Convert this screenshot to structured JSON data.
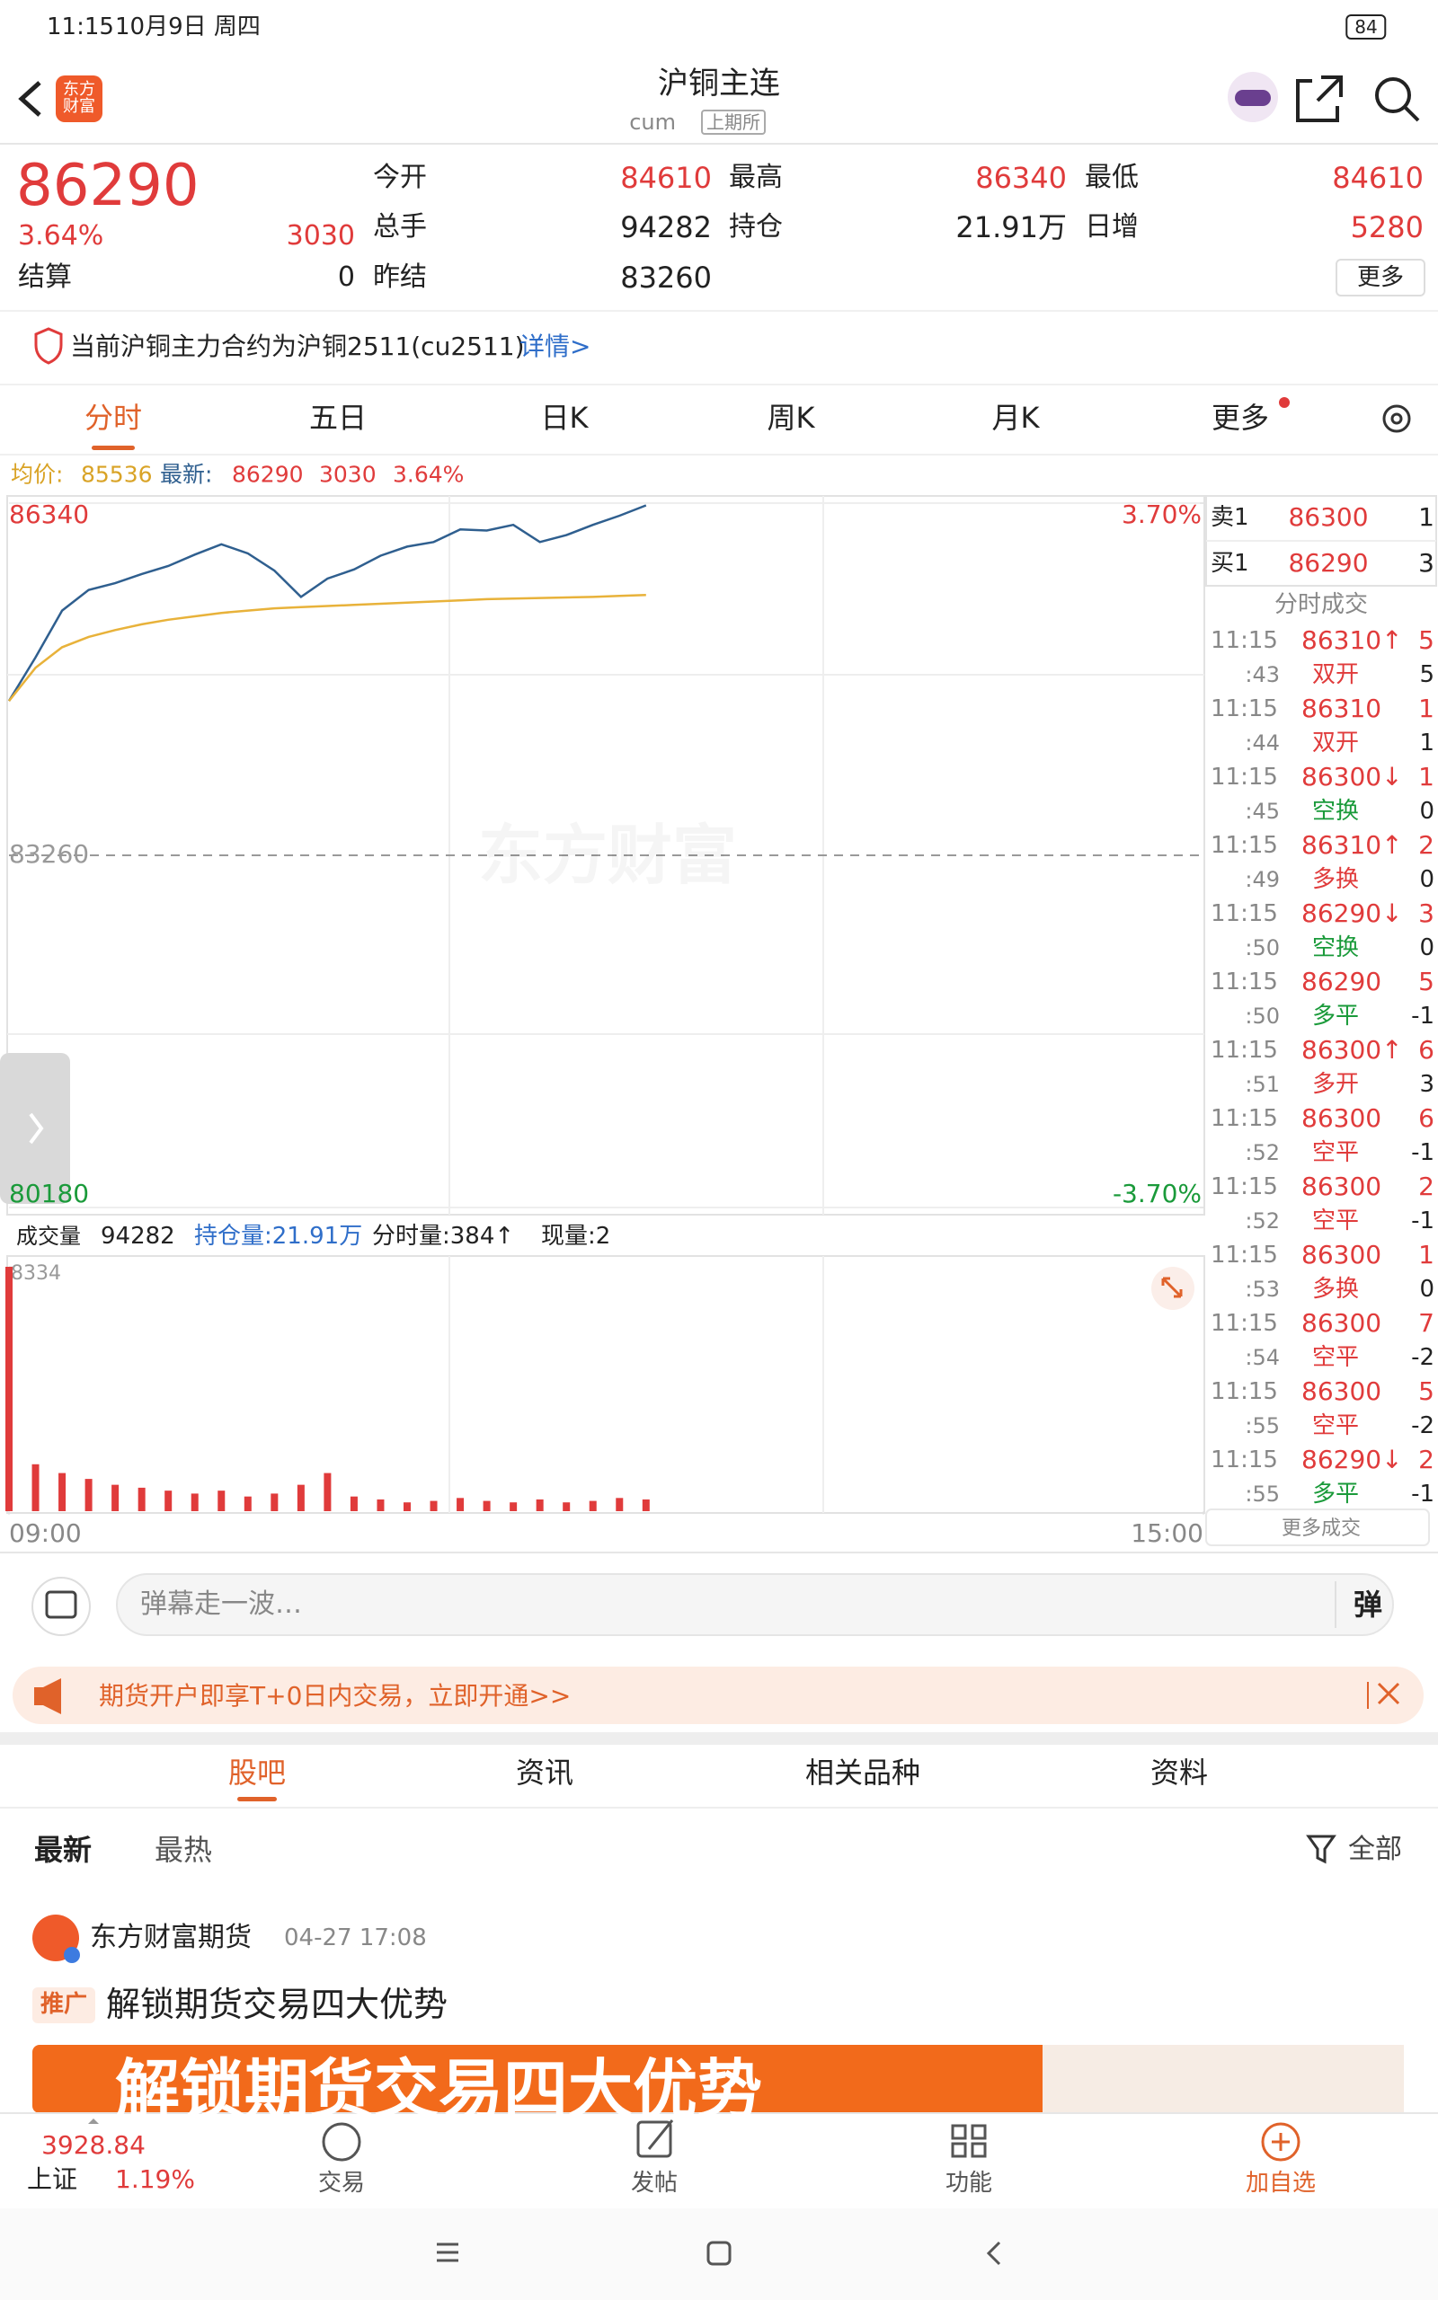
{
  "status_bar": {
    "time": "11:15",
    "date": "10月9日 周四",
    "battery": "84"
  },
  "header": {
    "title": "沪铜主连",
    "code": "cum",
    "exchange": "上期所",
    "logo": "东方财富"
  },
  "quote": {
    "price": "86290",
    "change_pct": "3.64%",
    "change": "3030",
    "settle_label": "结算",
    "settle": "0",
    "fields": [
      {
        "label": "今开",
        "value": "84610",
        "color": "#e03b3b"
      },
      {
        "label": "最高",
        "value": "86340",
        "color": "#e03b3b"
      },
      {
        "label": "最低",
        "value": "84610",
        "color": "#e03b3b"
      },
      {
        "label": "总手",
        "value": "94282",
        "color": "#222222"
      },
      {
        "label": "持仓",
        "value": "21.91万",
        "color": "#222222"
      },
      {
        "label": "日增",
        "value": "5280",
        "color": "#e03b3b"
      },
      {
        "label": "昨结",
        "value": "83260",
        "color": "#222222"
      }
    ],
    "more": "更多"
  },
  "notice": {
    "text": "当前沪铜主力合约为沪铜2511(cu2511)",
    "link": "详情>"
  },
  "tabs": {
    "items": [
      "分时",
      "五日",
      "日K",
      "周K",
      "月K",
      "更多"
    ],
    "active": 0
  },
  "summary": {
    "avg_label": "均价:",
    "avg": "85536",
    "latest_label": "最新:",
    "latest": "86290",
    "change": "3030",
    "pct": "3.64%"
  },
  "watermark": "东方财富",
  "volume_info": {
    "label": "成交量",
    "volume": "94282",
    "oi": "持仓量:21.91万",
    "tick_volume": "分时量:384↑",
    "current": "现量:2"
  },
  "order_book": {
    "ask": {
      "label": "卖1",
      "price": "86300",
      "volume": "1"
    },
    "bid": {
      "label": "买1",
      "price": "86290",
      "volume": "3"
    },
    "title": "分时成交",
    "trades": [
      {
        "time": "11:15",
        "sec": ":43",
        "price": "86310↑",
        "volume": "5",
        "kind": "双开",
        "oi": "5",
        "kind_color": "#e03b3b"
      },
      {
        "time": "11:15",
        "sec": ":44",
        "price": "86310",
        "volume": "1",
        "kind": "双开",
        "oi": "1",
        "kind_color": "#e03b3b"
      },
      {
        "time": "11:15",
        "sec": ":45",
        "price": "86300↓",
        "volume": "1",
        "kind": "空换",
        "oi": "0",
        "kind_color": "#1a9a3a"
      },
      {
        "time": "11:15",
        "sec": ":49",
        "price": "86310↑",
        "volume": "2",
        "kind": "多换",
        "oi": "0",
        "kind_color": "#e03b3b"
      },
      {
        "time": "11:15",
        "sec": ":50",
        "price": "86290↓",
        "volume": "3",
        "kind": "空换",
        "oi": "0",
        "kind_color": "#1a9a3a"
      },
      {
        "time": "11:15",
        "sec": ":50",
        "price": "86290",
        "volume": "5",
        "kind": "多平",
        "oi": "-1",
        "kind_color": "#1a9a3a"
      },
      {
        "time": "11:15",
        "sec": ":51",
        "price": "86300↑",
        "volume": "6",
        "kind": "多开",
        "oi": "3",
        "kind_color": "#e03b3b"
      },
      {
        "time": "11:15",
        "sec": ":52",
        "price": "86300",
        "volume": "6",
        "kind": "空平",
        "oi": "-1",
        "kind_color": "#e03b3b"
      },
      {
        "time": "11:15",
        "sec": ":52",
        "price": "86300",
        "volume": "2",
        "kind": "空平",
        "oi": "-1",
        "kind_color": "#e03b3b"
      },
      {
        "time": "11:15",
        "sec": ":53",
        "price": "86300",
        "volume": "1",
        "kind": "多换",
        "oi": "0",
        "kind_color": "#e03b3b"
      },
      {
        "time": "11:15",
        "sec": ":54",
        "price": "86300",
        "volume": "7",
        "kind": "空平",
        "oi": "-2",
        "kind_color": "#e03b3b"
      },
      {
        "time": "11:15",
        "sec": ":55",
        "price": "86300",
        "volume": "5",
        "kind": "空平",
        "oi": "-2",
        "kind_color": "#e03b3b"
      },
      {
        "time": "11:15",
        "sec": ":55",
        "price": "86290↓",
        "volume": "2",
        "kind": "多平",
        "oi": "-1",
        "kind_color": "#1a9a3a"
      }
    ],
    "more": "更多成交"
  },
  "comment": {
    "placeholder": "弹幕走一波…",
    "button": "弹"
  },
  "promo": {
    "text": "期货开户即享T+0日内交易，立即开通>>"
  },
  "section_tabs": {
    "items": [
      "股吧",
      "资讯",
      "相关品种",
      "资料"
    ],
    "active": 0
  },
  "filter": {
    "items": [
      "最新",
      "最热"
    ],
    "all": "全部"
  },
  "post": {
    "author": "东方财富期货",
    "time": "04-27 17:08",
    "tag": "推广",
    "title": "解锁期货交易四大优势",
    "banner": "解锁期货交易四大优势"
  },
  "bottom_nav": {
    "index_value": "3928.84",
    "index_name": "上证",
    "index_change": "1.19%",
    "items": [
      "交易",
      "发帖",
      "功能",
      "加自选"
    ]
  },
  "chart_data": [
    {
      "type": "line",
      "x": [
        0,
        5,
        10,
        15,
        20,
        25,
        30,
        35,
        40,
        45,
        50,
        55,
        60,
        65,
        70,
        75,
        80,
        85,
        90,
        95,
        100,
        105,
        110,
        115,
        120
      ],
      "series": [
        {
          "color": "#2f5f8f",
          "values": [
            84610,
            84990,
            85400,
            85580,
            85640,
            85720,
            85790,
            85890,
            85980,
            85900,
            85750,
            85520,
            85680,
            85760,
            85880,
            85960,
            86000,
            86110,
            86100,
            86150,
            86000,
            86060,
            86150,
            86230,
            86320
          ]
        },
        {
          "color": "#e8b23a",
          "values": [
            84610,
            84900,
            85080,
            85170,
            85230,
            85280,
            85320,
            85350,
            85380,
            85400,
            85420,
            85430,
            85440,
            85450,
            85460,
            85470,
            85480,
            85490,
            85500,
            85505,
            85510,
            85515,
            85520,
            85528,
            85536
          ]
        }
      ],
      "xlim": [
        0,
        225
      ],
      "ylim": [
        80180,
        86340
      ],
      "yticks": [
        86340,
        83260,
        80180
      ],
      "y2lim": [
        -3.7,
        3.7
      ],
      "y2ticks": [
        {
          "value": 3.7,
          "label": "3.70%"
        },
        {
          "value": -3.7,
          "label": "-3.70%"
        }
      ]
    },
    {
      "type": "bar",
      "x": [
        0,
        5,
        10,
        15,
        20,
        25,
        30,
        35,
        40,
        45,
        50,
        55,
        60,
        65,
        70,
        75,
        80,
        85,
        90,
        95,
        100,
        105,
        110,
        115,
        120
      ],
      "values": [
        8334,
        1600,
        1300,
        1100,
        900,
        800,
        700,
        600,
        700,
        500,
        600,
        900,
        1300,
        500,
        400,
        300,
        350,
        450,
        350,
        300,
        400,
        300,
        350,
        450,
        400
      ],
      "color": "#e03b3b",
      "xlim": [
        0,
        225
      ],
      "xticks": [
        {
          "value": 0,
          "label": "09:00"
        },
        {
          "value": 225,
          "label": "15:00"
        }
      ],
      "ylim": [
        0,
        8334
      ],
      "yticks": [
        8334
      ]
    }
  ]
}
